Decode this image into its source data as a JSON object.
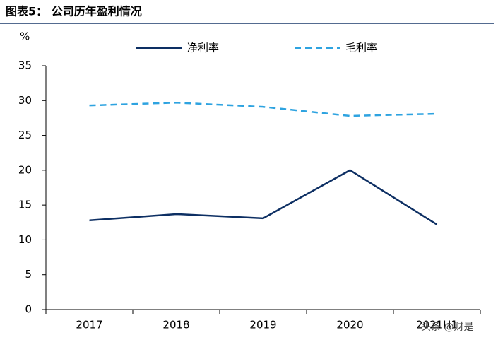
{
  "chart_data": {
    "type": "line",
    "title": "图表5：  公司历年盈利情况",
    "y_unit": "%",
    "categories": [
      "2017",
      "2018",
      "2019",
      "2020",
      "2021H1"
    ],
    "series": [
      {
        "name": "净利率",
        "color": "#0d2f63",
        "dash": false,
        "values": [
          12.8,
          13.7,
          13.1,
          20.0,
          12.2
        ]
      },
      {
        "name": "毛利率",
        "color": "#2ea3e0",
        "dash": true,
        "values": [
          29.3,
          29.7,
          29.1,
          27.8,
          28.1
        ]
      }
    ],
    "ylim": [
      0,
      35
    ],
    "yticks": [
      0,
      5,
      10,
      15,
      20,
      25,
      30,
      35
    ],
    "grid": false,
    "watermark": "头条 @财是"
  }
}
